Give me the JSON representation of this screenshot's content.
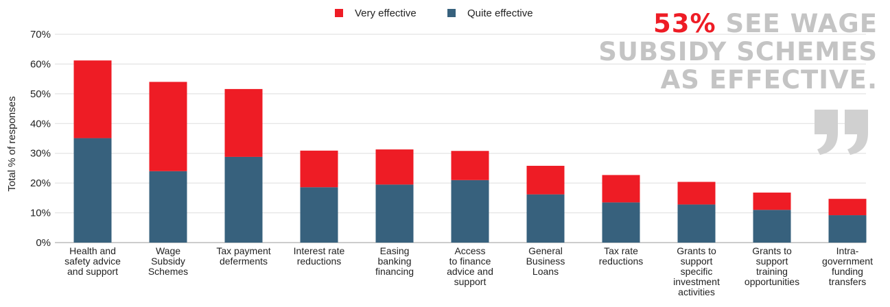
{
  "chart_data": {
    "type": "bar",
    "stacked": true,
    "ylabel": "Total % of responses",
    "ylim": [
      0,
      70
    ],
    "yticks": [
      "0%",
      "10%",
      "20%",
      "30%",
      "40%",
      "50%",
      "60%",
      "70%"
    ],
    "grid": true,
    "legend_position": "top",
    "categories": [
      [
        "Health and",
        "safety advice",
        "and support"
      ],
      [
        "Wage",
        "Subsidy",
        "Schemes"
      ],
      [
        "Tax payment",
        "deferments"
      ],
      [
        "Interest rate",
        "reductions"
      ],
      [
        "Easing",
        "banking",
        "financing"
      ],
      [
        "Access",
        "to finance",
        "advice and",
        "support"
      ],
      [
        "General",
        "Business",
        "Loans"
      ],
      [
        "Tax rate",
        "reductions"
      ],
      [
        "Grants to",
        "support",
        "specific",
        "investment",
        "activities"
      ],
      [
        "Grants to",
        "support",
        "training",
        "opportunities"
      ],
      [
        "Intra-",
        "government",
        "funding",
        "transfers"
      ]
    ],
    "series": [
      {
        "name": "Quite effective",
        "color": "#37617d",
        "values": [
          35.1,
          24.0,
          28.8,
          18.6,
          19.5,
          21.0,
          16.2,
          13.5,
          12.8,
          11.0,
          9.2
        ]
      },
      {
        "name": "Very effective",
        "color": "#ee1c25",
        "values": [
          26.1,
          30.0,
          22.8,
          12.3,
          11.8,
          9.8,
          9.6,
          9.2,
          7.6,
          5.8,
          5.5
        ]
      }
    ],
    "legend_order": [
      "Very effective",
      "Quite effective"
    ]
  },
  "callout": {
    "highlight": "53%",
    "line1_rest": " SEE WAGE",
    "line2": "SUBSIDY SCHEMES",
    "line3": "AS EFFECTIVE."
  },
  "icons": {
    "quote": "closing-quote-icon"
  },
  "colors": {
    "very_effective": "#ee1c25",
    "quite_effective": "#37617d",
    "callout_grey": "#c4c4c4"
  }
}
